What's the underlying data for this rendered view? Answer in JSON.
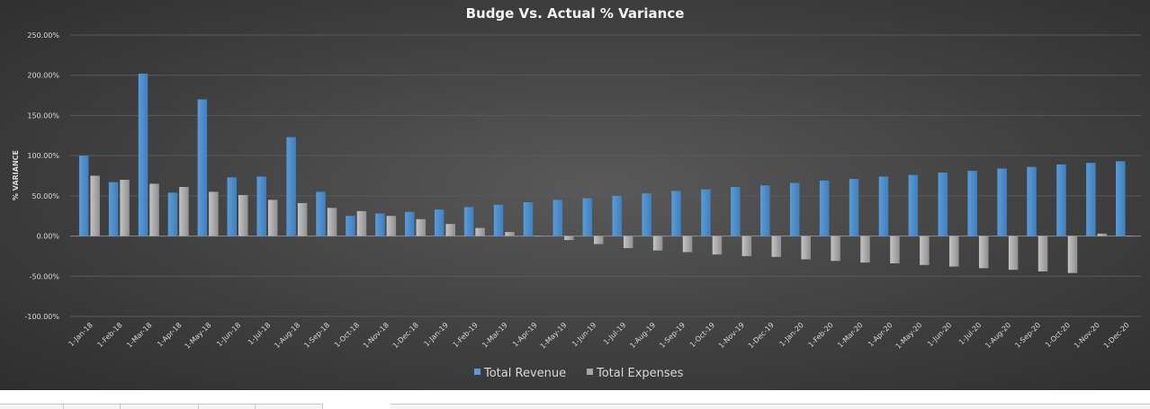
{
  "chart_data": {
    "type": "bar",
    "title": "Budge Vs. Actual % Variance",
    "ylabel": "% VARIANCE",
    "xlabel": "",
    "ylim": [
      -100,
      250
    ],
    "yticks": [
      250,
      200,
      150,
      100,
      50,
      0,
      -50,
      -100
    ],
    "ytick_labels": [
      "250.00%",
      "200.00%",
      "150.00%",
      "100.00%",
      "50.00%",
      "0.00%",
      "-50.00%",
      "-100.00%"
    ],
    "grid": true,
    "legend_position": "bottom",
    "categories": [
      "1-Jan-18",
      "1-Feb-18",
      "1-Mar-18",
      "1-Apr-18",
      "1-May-18",
      "1-Jun-18",
      "1-Jul-18",
      "1-Aug-18",
      "1-Sep-18",
      "1-Oct-18",
      "1-Nov-18",
      "1-Dec-18",
      "1-Jan-19",
      "1-Feb-19",
      "1-Mar-19",
      "1-Apr-19",
      "1-May-19",
      "1-Jun-19",
      "1-Jul-19",
      "1-Aug-19",
      "1-Sep-19",
      "1-Oct-19",
      "1-Nov-19",
      "1-Dec-19",
      "1-Jan-20",
      "1-Feb-20",
      "1-Mar-20",
      "1-Apr-20",
      "1-May-20",
      "1-Jun-20",
      "1-Jul-20",
      "1-Aug-20",
      "1-Sep-20",
      "1-Oct-20",
      "1-Nov-20",
      "1-Dec-20"
    ],
    "series": [
      {
        "name": "Total Revenue",
        "color": "#5b9bd5",
        "values": [
          100,
          67,
          202,
          54,
          170,
          73,
          74,
          123,
          55,
          25,
          28,
          30,
          33,
          36,
          39,
          42,
          45,
          47,
          50,
          53,
          56,
          58,
          61,
          63,
          66,
          69,
          71,
          74,
          76,
          79,
          81,
          84,
          86,
          89,
          91,
          93
        ]
      },
      {
        "name": "Total Expenses",
        "color": "#a6a6a6",
        "values": [
          75,
          70,
          65,
          61,
          55,
          51,
          45,
          41,
          35,
          31,
          25,
          21,
          15,
          10,
          5,
          0,
          -5,
          -10,
          -15,
          -18,
          -20,
          -23,
          -25,
          -26,
          -29,
          -31,
          -33,
          -34,
          -36,
          -38,
          -40,
          -42,
          -44,
          -46,
          3,
          0
        ]
      }
    ]
  }
}
